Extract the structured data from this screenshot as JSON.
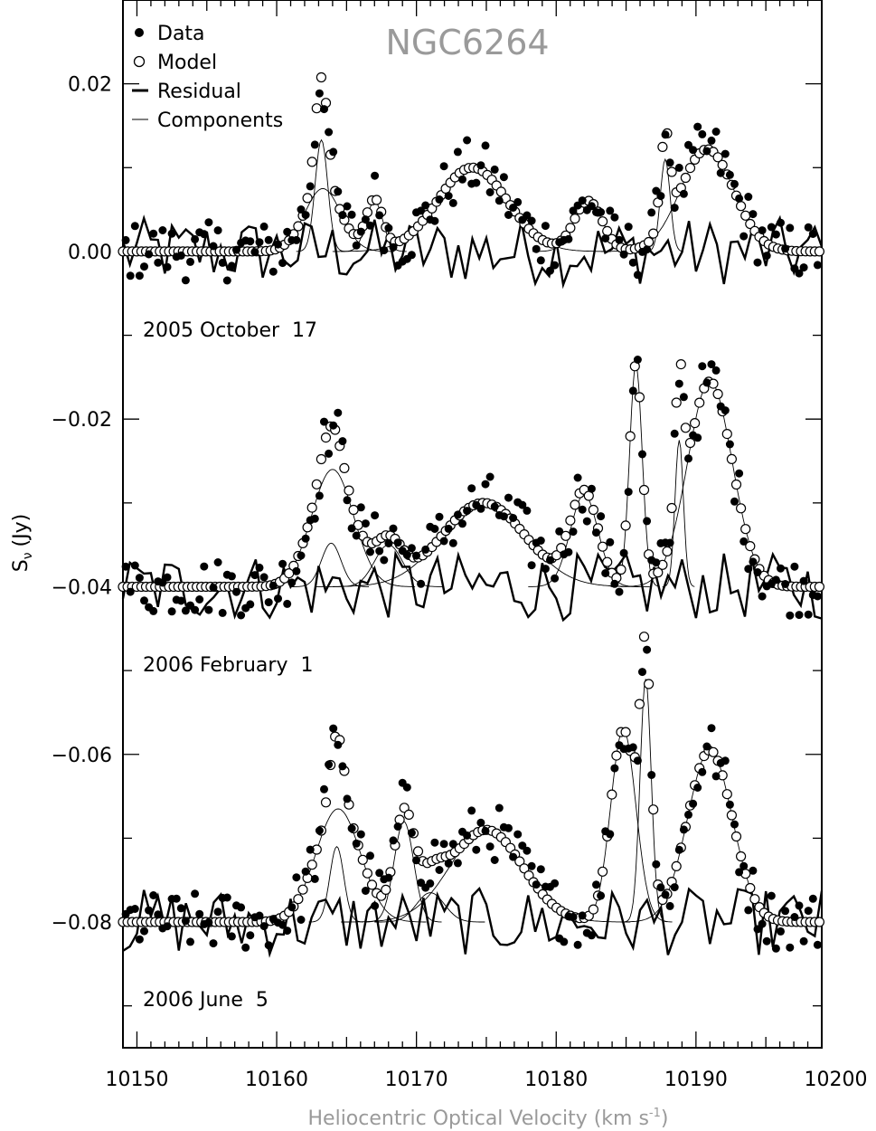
{
  "chart_data": {
    "type": "scatter",
    "title": "NGC6264",
    "xlabel": "Heliocentric Optical Velocity (km s",
    "xlabel_sup": "-1",
    "xlabel_close": ")",
    "ylabel": "S",
    "ylabel_sub": "ν",
    "ylabel_unit": "(Jy)",
    "xlim": [
      10149,
      10199
    ],
    "ylim": [
      -0.095,
      0.03
    ],
    "x_ticks": [
      10150,
      10160,
      10170,
      10180,
      10190,
      10200
    ],
    "x_tick_labels": [
      "10150",
      "10160",
      "10170",
      "10180",
      "10190",
      "10200"
    ],
    "y_ticks": [
      0.02,
      0.0,
      -0.02,
      -0.04,
      -0.06,
      -0.08
    ],
    "y_tick_labels": [
      "0.02",
      "0.00",
      "−0.02",
      "−0.04",
      "−0.06",
      "−0.08"
    ],
    "legend": {
      "placement": "top-left",
      "items": [
        {
          "label": "Data",
          "marker": "filled-circle"
        },
        {
          "label": "Model",
          "marker": "open-circle"
        },
        {
          "label": "Residual",
          "marker": "thick-line"
        },
        {
          "label": "Components",
          "marker": "thin-line"
        }
      ]
    },
    "epochs": [
      {
        "label": "2005 October  17",
        "offset": 0.0,
        "components": [
          {
            "center": 10163.2,
            "amp": 0.0133,
            "sigma": 0.45
          },
          {
            "center": 10163.3,
            "amp": 0.0075,
            "sigma": 1.3
          },
          {
            "center": 10167.0,
            "amp": 0.006,
            "sigma": 0.6
          },
          {
            "center": 10174.0,
            "amp": 0.01,
            "sigma": 2.5
          },
          {
            "center": 10182.3,
            "amp": 0.006,
            "sigma": 1.0
          },
          {
            "center": 10187.8,
            "amp": 0.011,
            "sigma": 0.35
          },
          {
            "center": 10190.8,
            "amp": 0.0122,
            "sigma": 1.9
          }
        ]
      },
      {
        "label": "2006 February  1",
        "offset": -0.04,
        "components": [
          {
            "center": 10163.9,
            "amp": 0.0052,
            "sigma": 0.7
          },
          {
            "center": 10164.0,
            "amp": 0.014,
            "sigma": 1.5
          },
          {
            "center": 10168.0,
            "amp": 0.005,
            "sigma": 1.0
          },
          {
            "center": 10174.8,
            "amp": 0.01,
            "sigma": 3.0
          },
          {
            "center": 10182.0,
            "amp": 0.011,
            "sigma": 1.0
          },
          {
            "center": 10185.7,
            "amp": 0.0265,
            "sigma": 0.45
          },
          {
            "center": 10188.8,
            "amp": 0.0175,
            "sigma": 0.3
          },
          {
            "center": 10191.0,
            "amp": 0.0245,
            "sigma": 1.6
          }
        ]
      },
      {
        "label": "2006 June  5",
        "offset": -0.08,
        "components": [
          {
            "center": 10164.3,
            "amp": 0.009,
            "sigma": 0.5
          },
          {
            "center": 10164.4,
            "amp": 0.0135,
            "sigma": 1.6
          },
          {
            "center": 10169.1,
            "amp": 0.012,
            "sigma": 0.7
          },
          {
            "center": 10171.0,
            "amp": 0.0035,
            "sigma": 1.0
          },
          {
            "center": 10175.0,
            "amp": 0.011,
            "sigma": 2.6
          },
          {
            "center": 10184.8,
            "amp": 0.023,
            "sigma": 0.9
          },
          {
            "center": 10186.4,
            "amp": 0.029,
            "sigma": 0.4
          },
          {
            "center": 10191.0,
            "amp": 0.0205,
            "sigma": 1.6
          }
        ]
      }
    ]
  }
}
